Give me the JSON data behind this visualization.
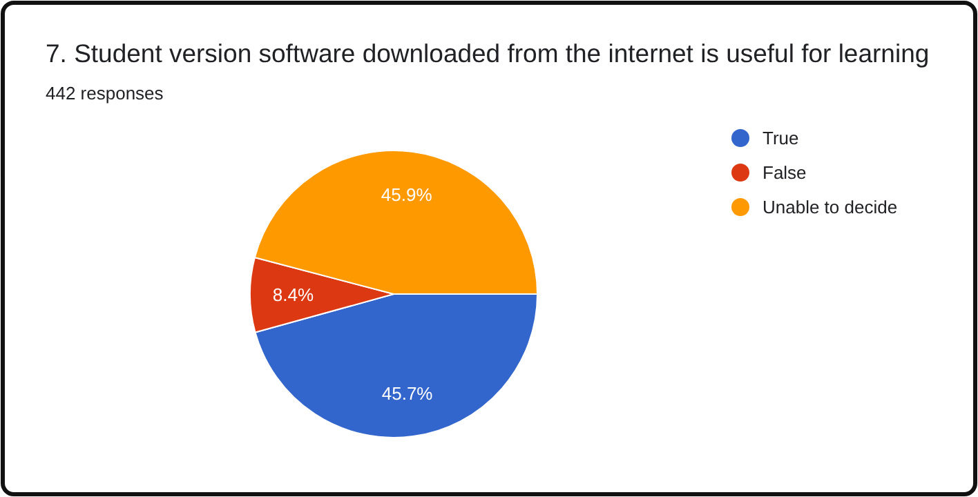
{
  "chart_data": {
    "type": "pie",
    "title": "7. Student version software downloaded from the internet is useful for learning",
    "subtitle": "442 responses",
    "categories": [
      "True",
      "False",
      "Unable to decide"
    ],
    "values": [
      45.7,
      8.4,
      45.9
    ],
    "value_labels": [
      "45.7%",
      "8.4%",
      "45.9%"
    ],
    "colors": [
      "#3366cc",
      "#dc3912",
      "#ff9900"
    ],
    "legend": "right"
  }
}
